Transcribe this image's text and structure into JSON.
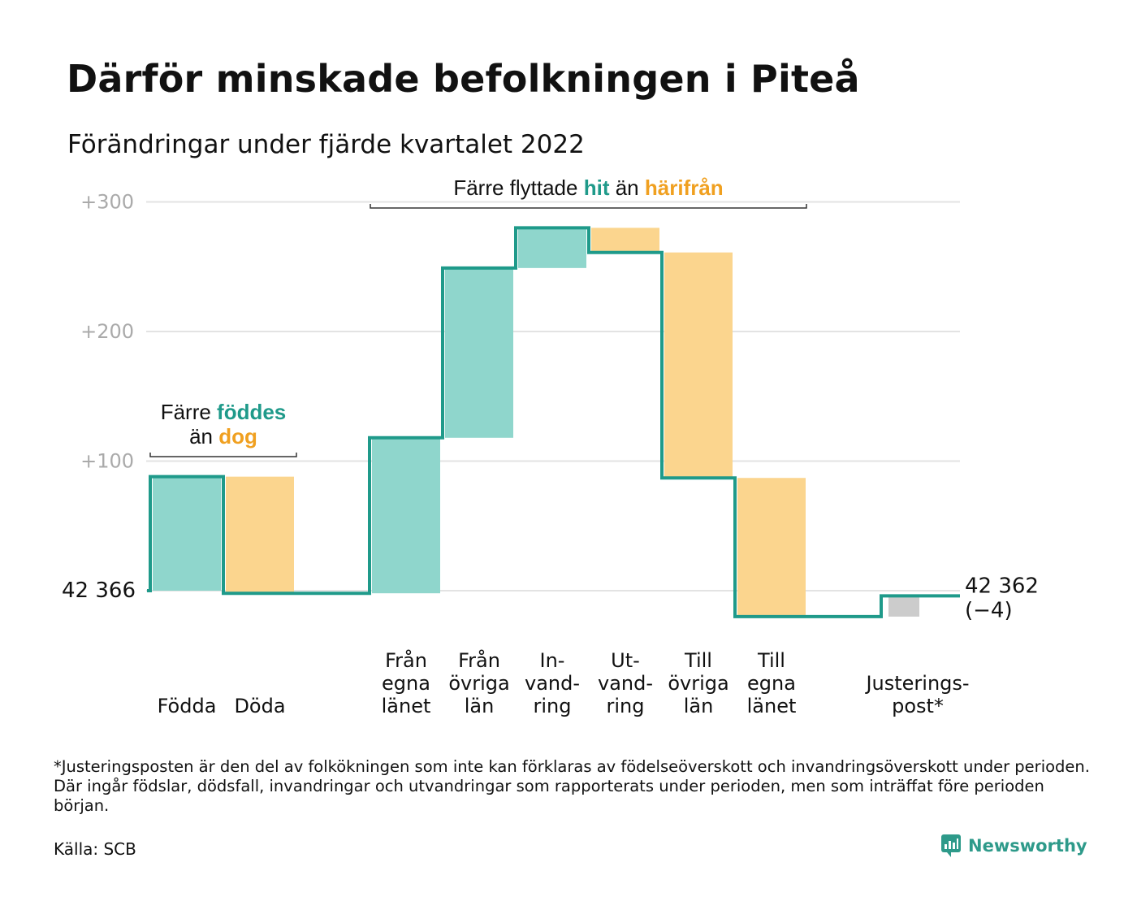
{
  "title": "Därför minskade befolkningen i Piteå",
  "subtitle": "Förändringar under fjärde kvartalet 2022",
  "footnote": "*Justeringsposten är den del av folkökningen som inte kan förklaras av födelseöverskott och invandringsöverskott under perioden. Där ingår födslar, dödsfall, invandringar och utvandringar som rapporterats under perioden, men som inträffat före perioden början.",
  "source": "Källa: SCB",
  "brand": "Newsworthy",
  "colors": {
    "increase_fill": "#8fd6cc",
    "decrease_fill": "#fbd58e",
    "adjustment_fill": "#cccccc",
    "line": "#1f9a8a",
    "teal_text": "#1f9a8a",
    "orange_text": "#f0a020",
    "grid": "#e3e3e3",
    "tick_text": "#aaaaaa"
  },
  "chart_data": {
    "type": "waterfall",
    "title": "Därför minskade befolkningen i Piteå",
    "subtitle": "Förändringar under fjärde kvartalet 2022",
    "start_label": "42 366",
    "end_label_value": "42 362",
    "end_label_change": "(−4)",
    "start_value": 42366,
    "end_value": 42362,
    "y_axis": {
      "ticks": [
        100,
        200,
        300
      ],
      "tick_labels": [
        "+100",
        "+200",
        "+300"
      ],
      "ylim": [
        -30,
        310
      ]
    },
    "grid": true,
    "steps": [
      {
        "label_lines": [
          "Födda"
        ],
        "change": 88,
        "kind": "increase"
      },
      {
        "label_lines": [
          "Döda"
        ],
        "change": -90,
        "kind": "decrease"
      },
      {
        "label_lines": [],
        "change": 0,
        "kind": "empty"
      },
      {
        "label_lines": [
          "Från",
          "egna",
          "länet"
        ],
        "change": 120,
        "kind": "increase"
      },
      {
        "label_lines": [
          "Från",
          "övriga",
          "län"
        ],
        "change": 131,
        "kind": "increase"
      },
      {
        "label_lines": [
          "In-",
          "vand-",
          "ring"
        ],
        "change": 31,
        "kind": "increase"
      },
      {
        "label_lines": [
          "Ut-",
          "vand-",
          "ring"
        ],
        "change": -19,
        "kind": "decrease"
      },
      {
        "label_lines": [
          "Till",
          "övriga",
          "län"
        ],
        "change": -174,
        "kind": "decrease"
      },
      {
        "label_lines": [
          "Till",
          "egna",
          "länet"
        ],
        "change": -107,
        "kind": "decrease"
      },
      {
        "label_lines": [],
        "change": 0,
        "kind": "empty"
      },
      {
        "label_lines": [
          "Justerings-",
          "post*"
        ],
        "change": 16,
        "kind": "adjustment"
      }
    ],
    "annotations": [
      {
        "lines": [
          [
            {
              "text": "Färre ",
              "style": "plain"
            },
            {
              "text": "föddes",
              "style": "teal"
            }
          ],
          [
            {
              "text": "än ",
              "style": "plain"
            },
            {
              "text": "dog",
              "style": "orange"
            }
          ]
        ],
        "span_steps": [
          0,
          1
        ]
      },
      {
        "lines": [
          [
            {
              "text": "Färre flyttade ",
              "style": "plain"
            },
            {
              "text": "hit",
              "style": "teal"
            },
            {
              "text": " än ",
              "style": "plain"
            },
            {
              "text": "härifrån",
              "style": "orange"
            }
          ]
        ],
        "span_steps": [
          3,
          8
        ]
      }
    ]
  }
}
